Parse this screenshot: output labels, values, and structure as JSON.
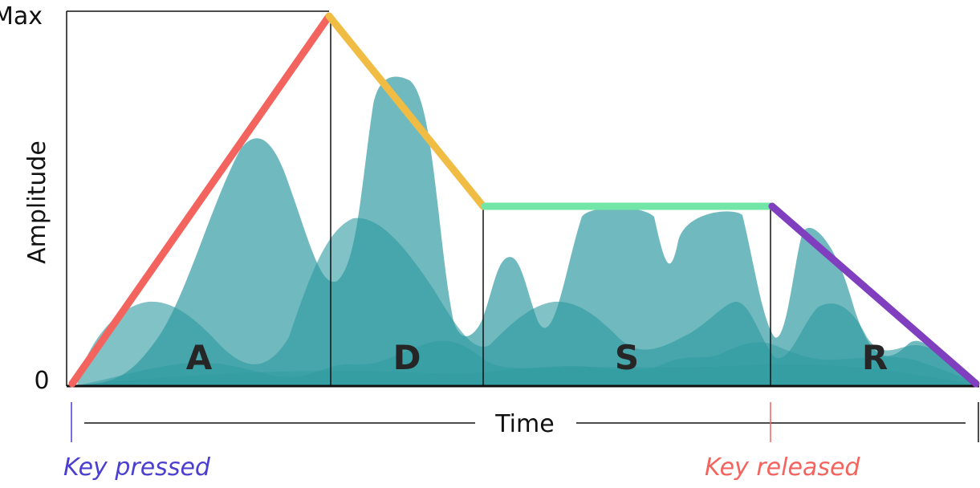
{
  "axis": {
    "y_max_label": "Max",
    "y_min_label": "0",
    "y_title": "Amplitude",
    "x_title": "Time"
  },
  "phases": [
    {
      "letter": "A",
      "color": "#f4645f"
    },
    {
      "letter": "D",
      "color": "#f0bc43"
    },
    {
      "letter": "S",
      "color": "#72e6a6"
    },
    {
      "letter": "R",
      "color": "#7f3fbf"
    }
  ],
  "markers": {
    "key_pressed": {
      "label": "Key pressed",
      "color": "#4b3fd1"
    },
    "key_released": {
      "label": "Key released",
      "color": "#f4645f"
    }
  },
  "colors": {
    "wave_fill": "#2c9aa0",
    "frame": "#111111"
  }
}
